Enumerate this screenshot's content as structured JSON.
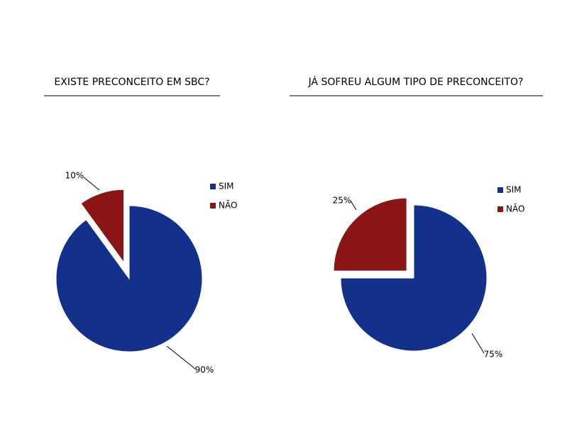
{
  "chart_data": [
    {
      "type": "pie",
      "title": "EXISTE PRECONCEITO EM SBC?",
      "categories": [
        "SIM",
        "NÃO"
      ],
      "values": [
        90,
        10
      ],
      "value_labels": [
        "90%",
        "10%"
      ],
      "colors": [
        "#13308a",
        "#8b1414"
      ]
    },
    {
      "type": "pie",
      "title": "JÁ SOFREU ALGUM TIPO DE PRECONCEITO?",
      "categories": [
        "SIM",
        "NÃO"
      ],
      "values": [
        75,
        25
      ],
      "value_labels": [
        "75%",
        "25%"
      ],
      "colors": [
        "#13308a",
        "#8b1414"
      ]
    }
  ]
}
